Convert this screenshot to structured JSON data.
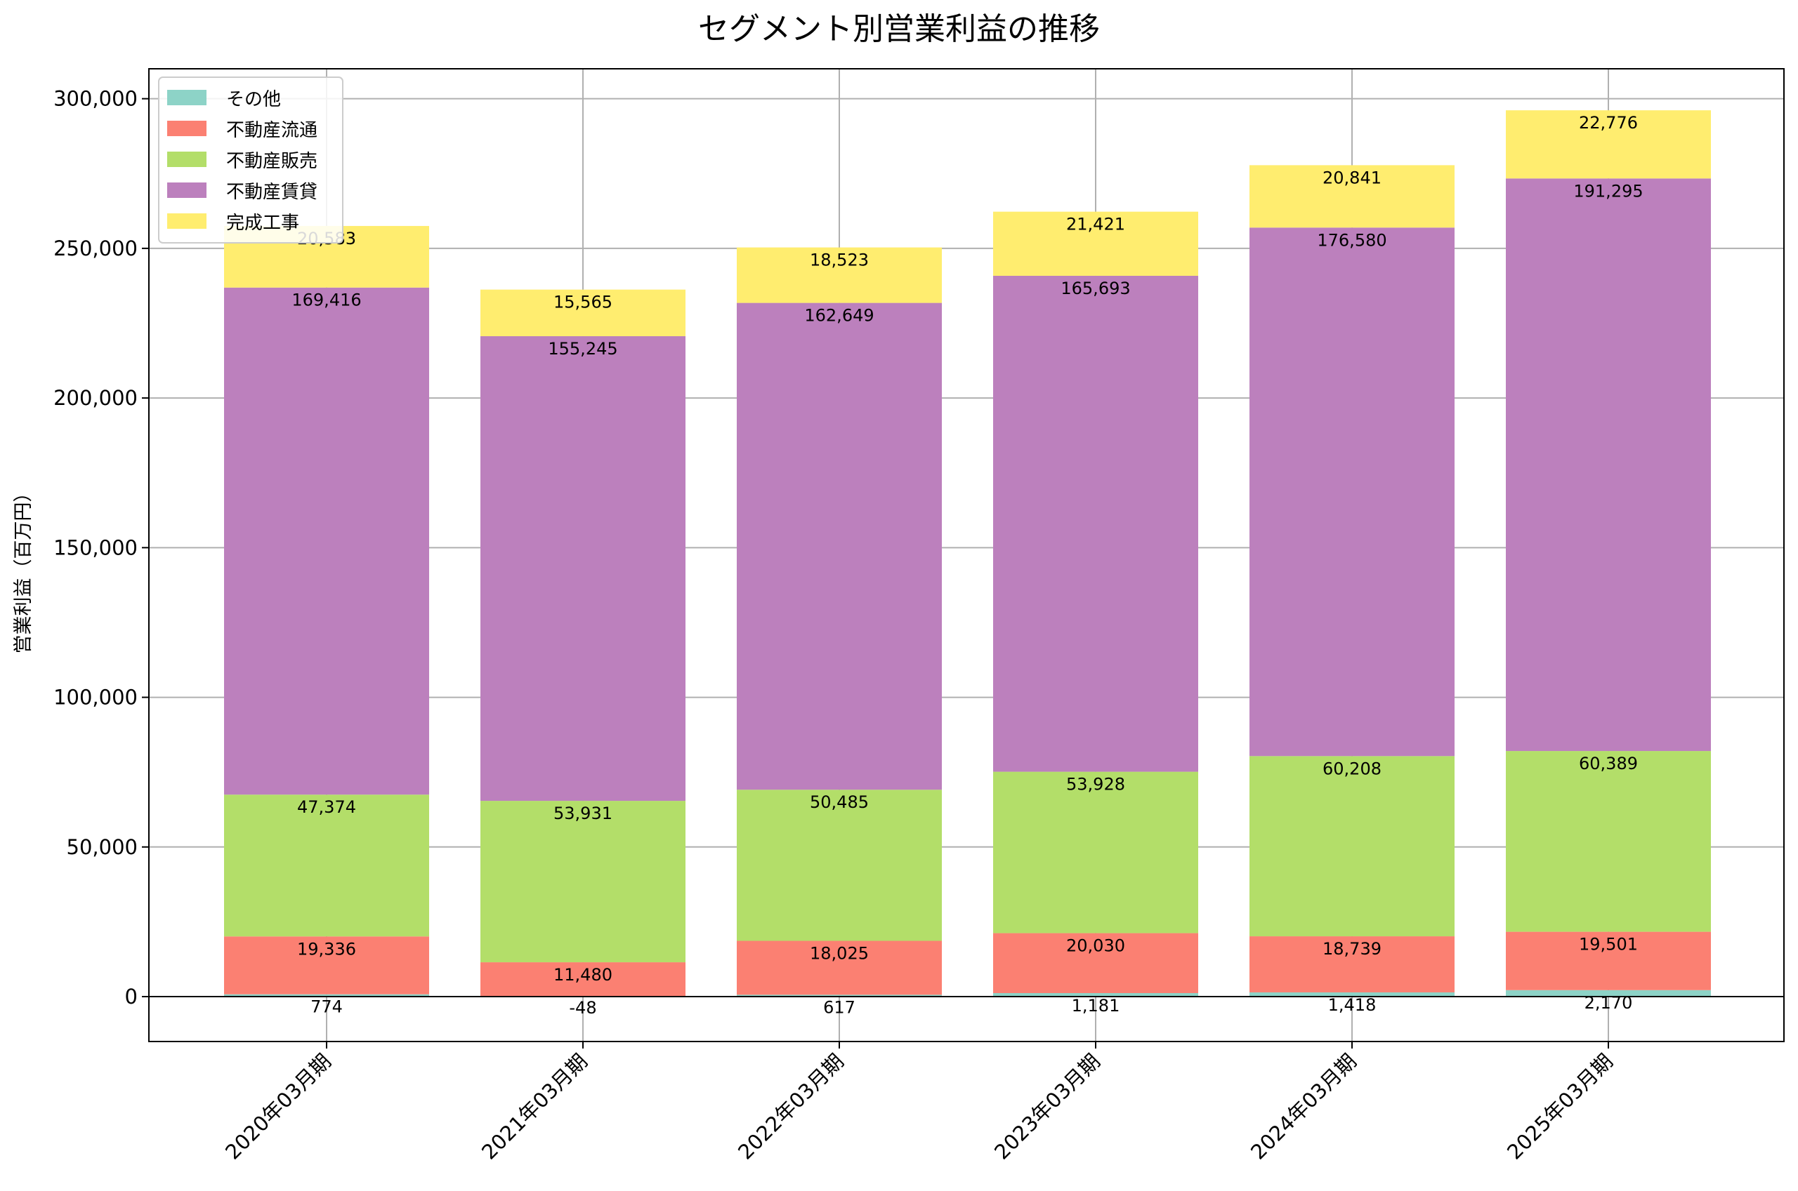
{
  "chart_data": {
    "type": "bar",
    "stacked": true,
    "title": "セグメント別営業利益の推移",
    "xlabel": "",
    "ylabel": "営業利益（百万円）",
    "ylim": [
      -15000,
      310000
    ],
    "yticks": [
      0,
      50000,
      100000,
      150000,
      200000,
      250000,
      300000
    ],
    "grid": true,
    "legend_position": "top-left",
    "categories": [
      "2020年03月期",
      "2021年03月期",
      "2022年03月期",
      "2023年03月期",
      "2024年03月期",
      "2025年03月期"
    ],
    "series": [
      {
        "name": "その他",
        "color": "#8dd3c7",
        "values": [
          774,
          -48,
          617,
          1181,
          1418,
          2170
        ]
      },
      {
        "name": "不動産流通",
        "color": "#fb8072",
        "values": [
          19336,
          11480,
          18025,
          20030,
          18739,
          19501
        ]
      },
      {
        "name": "不動産販売",
        "color": "#b3de69",
        "values": [
          47374,
          53931,
          50485,
          53928,
          60208,
          60389
        ]
      },
      {
        "name": "不動産賃貸",
        "color": "#bc80bd",
        "values": [
          169416,
          155245,
          162649,
          165693,
          176580,
          191295
        ]
      },
      {
        "name": "完成工事",
        "color": "#ffed6f",
        "values": [
          20583,
          15565,
          18523,
          21421,
          20841,
          22776
        ]
      }
    ]
  }
}
